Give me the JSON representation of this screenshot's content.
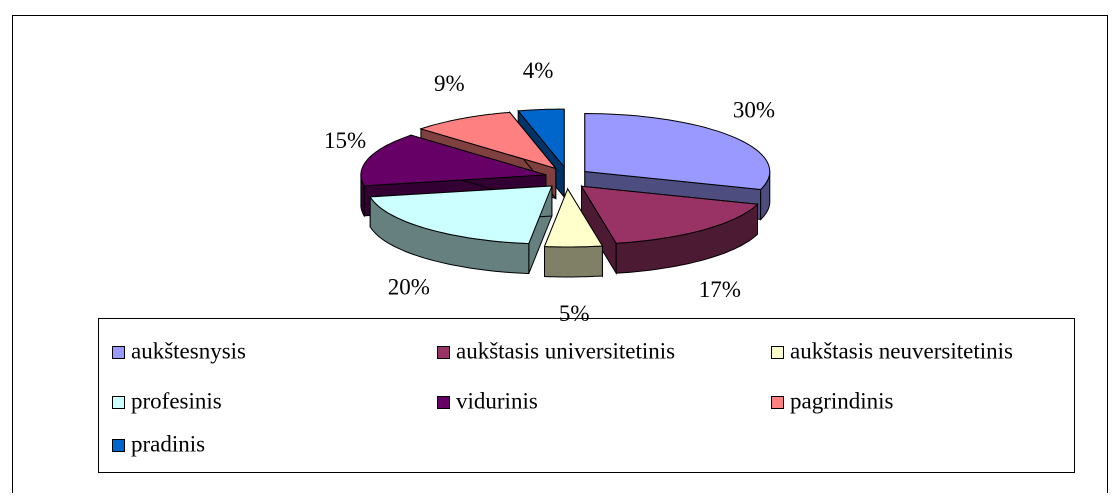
{
  "chart_data": {
    "type": "pie",
    "categories": [
      "aukštesnysis",
      "aukštasis universitetinis",
      "aukštasis neuversitetinis",
      "profesinis",
      "vidurinis",
      "pagrindinis",
      "pradinis"
    ],
    "values": [
      30,
      17,
      5,
      20,
      15,
      9,
      4
    ],
    "value_labels": [
      "30%",
      "17%",
      "5%",
      "20%",
      "15%",
      "9%",
      "4%"
    ],
    "colors": [
      "#9999ff",
      "#993366",
      "#ffffcc",
      "#ccffff",
      "#660066",
      "#ff8080",
      "#0066cc"
    ],
    "legend": "bottom"
  }
}
